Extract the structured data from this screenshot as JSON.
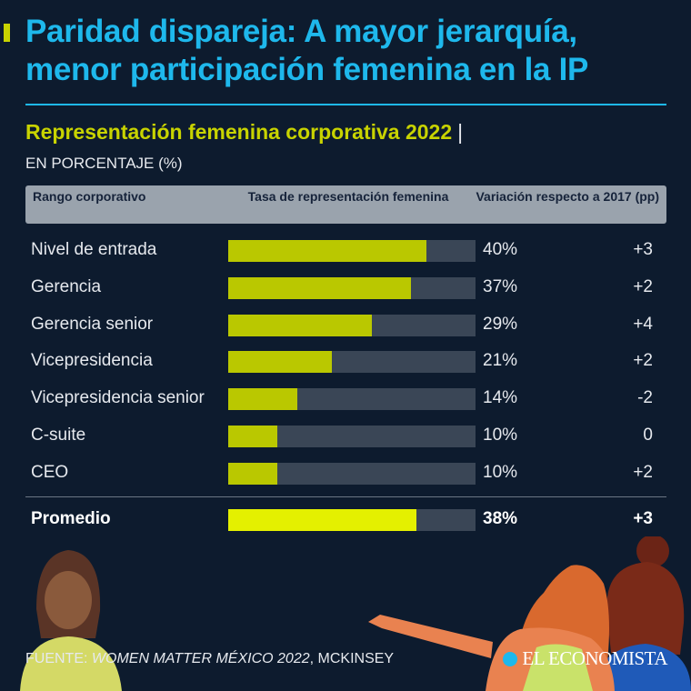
{
  "headline": "Paridad dispareja: A mayor jerarquía, menor participación femenina en la IP",
  "chart_data": {
    "type": "bar",
    "title": "Representación femenina corporativa 2022",
    "title_separator": "|",
    "subtitle": "EN PORCENTAJE (%)",
    "columns": {
      "rank": "Rango corporativo",
      "rate": "Tasa de representación femenina",
      "variation": "Variación respecto a 2017 (pp)"
    },
    "categories": [
      "Nivel de entrada",
      "Gerencia",
      "Gerencia senior",
      "Vicepresidencia",
      "Vicepresidencia senior",
      "C-suite",
      "CEO"
    ],
    "values": [
      40,
      37,
      29,
      21,
      14,
      10,
      10
    ],
    "value_labels": [
      "40%",
      "37%",
      "29%",
      "21%",
      "14%",
      "10%",
      "10%"
    ],
    "variation_labels": [
      "+3",
      "+2",
      "+4",
      "+2",
      "-2",
      "0",
      "+2"
    ],
    "average": {
      "label": "Promedio",
      "value": 38,
      "value_label": "38%",
      "variation_label": "+3"
    },
    "xlim": [
      0,
      50
    ],
    "colors": {
      "bar": "#bac800",
      "average_bar": "#e4f000",
      "track": "#3a4656"
    }
  },
  "footer": {
    "source_prefix": "FUENTE: ",
    "source_title": "WOMEN MATTER MÉXICO 2022",
    "source_suffix": ", MCKINSEY",
    "logo": "EL ECONOMISTA"
  }
}
